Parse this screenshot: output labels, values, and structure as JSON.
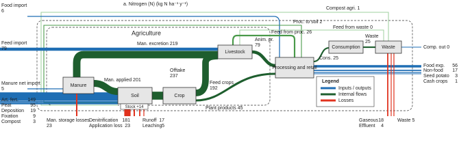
{
  "title": "a. Nitrogen (N) (kg N ha⁻¹ y⁻¹)",
  "region": "Agriculture",
  "nodes": [
    "Manure",
    "Soil",
    "Crop",
    "Livestock",
    "Processing and retail",
    "Consumption",
    "Waste"
  ],
  "stock": {
    "label": "Stock",
    "value": 14,
    "value_label": "+14"
  },
  "flows": [
    {
      "name": "Food import",
      "value": 6
    },
    {
      "name": "Feed import",
      "value": 79
    },
    {
      "name": "Manure net import",
      "value": 5
    },
    {
      "name": "Art. fert.",
      "value": 149
    },
    {
      "name": "Peat",
      "value": 95
    },
    {
      "name": "Deposition",
      "value": 19
    },
    {
      "name": "Fixation",
      "value": 9
    },
    {
      "name": "Compost",
      "value": 3
    },
    {
      "name": "Man. excretion",
      "value": 219
    },
    {
      "name": "Man. applied",
      "value": 201
    },
    {
      "name": "Offtake",
      "value": 237
    },
    {
      "name": "Feed crops",
      "value": 192
    },
    {
      "name": "Plant products",
      "value": 45
    },
    {
      "name": "Anim. pr.",
      "value": 79
    },
    {
      "name": "Proc. to soil",
      "value": 2
    },
    {
      "name": "Compost agri.",
      "value": 1
    },
    {
      "name": "Feed from proc.",
      "value": 26
    },
    {
      "name": "Feed from waste",
      "value": 0
    },
    {
      "name": "Cons.",
      "value": 25
    },
    {
      "name": "Waste",
      "value": 25
    },
    {
      "name": "Comp. out",
      "value": 0
    },
    {
      "name": "Food exp.",
      "value": 56
    },
    {
      "name": "Non-food",
      "value": 17
    },
    {
      "name": "Seed potato",
      "value": 3
    },
    {
      "name": "Cash crops",
      "value": 1
    },
    {
      "name": "Man. storage losses",
      "value": 23
    },
    {
      "name": "Denitrification",
      "value": 181
    },
    {
      "name": "Application loss",
      "value": 23
    },
    {
      "name": "Runoff",
      "value": 17
    },
    {
      "name": "Leaching",
      "value": 5
    },
    {
      "name": "Gaseous",
      "value": 18
    },
    {
      "name": "Effluent",
      "value": 4
    },
    {
      "name": "Waste",
      "value": 5
    }
  ],
  "legend": {
    "title": "Legend",
    "items": [
      "Inputs / outputs",
      "Internal flows",
      "Losses"
    ]
  }
}
